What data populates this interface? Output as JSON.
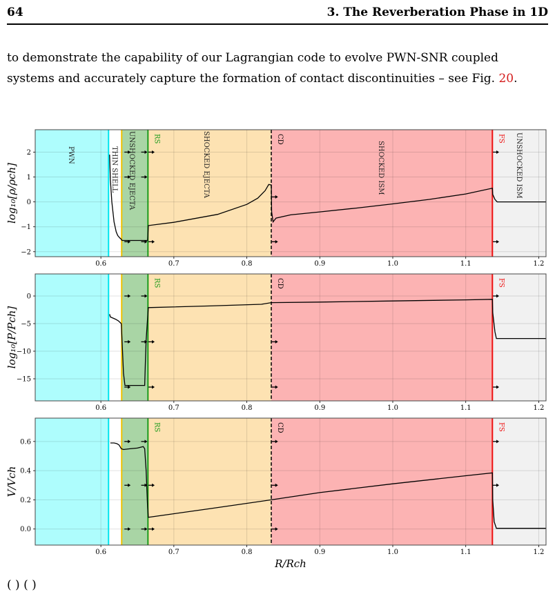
{
  "header": {
    "page_number": "64",
    "chapter_title": "3. The Reverberation Phase in 1D"
  },
  "paragraph": {
    "line1": "to demonstrate the capability of our Lagrangian code to evolve PWN-SNR coupled",
    "line2_prefix": "systems and accurately capture the formation of contact discontinuities – see Fig. ",
    "fig_ref": "20",
    "line2_suffix": "."
  },
  "trailing_text": "(                 )                 (                 )",
  "region_colors": {
    "pwn": "#aefdfd",
    "thin_shell": "#ffffff",
    "unshocked_ejecta": "#a9d5a5",
    "shocked_ejecta": "#fde2b2",
    "shocked_ism": "#fcb3b3",
    "unshocked_ism": "#f1f1f1"
  },
  "boundary_colors": {
    "pwn_edge": "#00e5ee",
    "shell_edge": "#f0c000",
    "rs": "#1b9a1b",
    "cd": "#000000",
    "fs": "#ee1111"
  },
  "chart_data": [
    {
      "type": "line",
      "ylabel": "log₁₀[ρ/ρch]",
      "xlim": [
        0.51,
        1.21
      ],
      "ylim": [
        -2.2,
        2.9
      ],
      "xticks": [
        0.6,
        0.7,
        0.8,
        0.9,
        1.0,
        1.1,
        1.2
      ],
      "xtick_labels": [
        "0.6",
        "0.7",
        "0.8",
        "0.9",
        "1.0",
        "1.1",
        "1.2"
      ],
      "yticks": [
        -2,
        -1,
        0,
        1,
        2
      ],
      "ytick_labels": [
        "−2",
        "−1",
        "0",
        "1",
        "2"
      ],
      "region_labels": [
        "PWN",
        "THIN SHELL",
        "UNSHOCKED EJECTA",
        "SHOCKED EJECTA",
        "SHOCKED ISM",
        "UNSHOCKED ISM"
      ],
      "boundary_labels": [
        "RS",
        "CD",
        "FS"
      ],
      "boundaries": {
        "pwn_edge": 0.6105,
        "shell_edge": 0.6285,
        "rs": 0.6645,
        "cd": 0.8335,
        "fs": 1.1365
      },
      "series": [
        {
          "x": [
            0.612,
            0.613,
            0.615,
            0.618,
            0.621,
            0.623,
            0.626,
            0.628,
            0.629,
            0.64,
            0.655,
            0.664,
            0.665,
            0.7,
            0.76,
            0.8,
            0.815,
            0.825,
            0.83,
            0.8335,
            0.834,
            0.836,
            0.84,
            0.86,
            0.9,
            0.95,
            1.0,
            1.05,
            1.1,
            1.1365,
            1.137,
            1.14,
            1.143,
            1.21
          ],
          "y": [
            1.9,
            0.9,
            0.0,
            -0.8,
            -1.2,
            -1.35,
            -1.45,
            -1.5,
            -1.55,
            -1.55,
            -1.55,
            -1.55,
            -0.95,
            -0.82,
            -0.5,
            -0.1,
            0.15,
            0.45,
            0.7,
            0.68,
            -0.4,
            -0.8,
            -0.65,
            -0.52,
            -0.4,
            -0.25,
            -0.08,
            0.1,
            0.32,
            0.55,
            0.3,
            0.1,
            0.0,
            0.0
          ]
        }
      ],
      "markers": [
        {
          "x": 0.636,
          "y": 2.0
        },
        {
          "x": 0.659,
          "y": 2.0
        },
        {
          "x": 0.636,
          "y": 1.0
        },
        {
          "x": 0.659,
          "y": 1.0
        },
        {
          "x": 0.636,
          "y": -1.6
        },
        {
          "x": 0.659,
          "y": -1.6
        },
        {
          "x": 0.669,
          "y": 2.0
        },
        {
          "x": 0.669,
          "y": -1.6
        },
        {
          "x": 0.838,
          "y": 0.2
        },
        {
          "x": 0.838,
          "y": -1.6
        },
        {
          "x": 1.141,
          "y": 2.0
        },
        {
          "x": 1.141,
          "y": -1.6
        }
      ]
    },
    {
      "type": "line",
      "ylabel": "log₁₀[P/Pch]",
      "xlim": [
        0.51,
        1.21
      ],
      "ylim": [
        -19,
        4
      ],
      "xticks": [
        0.6,
        0.7,
        0.8,
        0.9,
        1.0,
        1.1,
        1.2
      ],
      "xtick_labels": [
        "0.6",
        "0.7",
        "0.8",
        "0.9",
        "1.0",
        "1.1",
        "1.2"
      ],
      "yticks": [
        0,
        -5,
        -10,
        -15
      ],
      "ytick_labels": [
        "0",
        "−5",
        "−10",
        "−15"
      ],
      "boundary_labels": [
        "RS",
        "CD",
        "FS"
      ],
      "series": [
        {
          "x": [
            0.612,
            0.613,
            0.62,
            0.624,
            0.628,
            0.629,
            0.631,
            0.633,
            0.66,
            0.661,
            0.662,
            0.664,
            0.665,
            0.75,
            0.82,
            0.8335,
            0.9,
            1.0,
            1.1,
            1.1365,
            1.137,
            1.14,
            1.142,
            1.21
          ],
          "y": [
            -3.3,
            -3.8,
            -4.2,
            -4.5,
            -5.0,
            -8.0,
            -14.0,
            -16.2,
            -16.2,
            -12.0,
            -8.0,
            -4.0,
            -2.1,
            -1.8,
            -1.5,
            -1.2,
            -1.1,
            -0.9,
            -0.7,
            -0.6,
            -3.0,
            -6.5,
            -7.7,
            -7.7
          ]
        }
      ],
      "markers": [
        {
          "x": 0.636,
          "y": 0.0
        },
        {
          "x": 0.636,
          "y": -8.3
        },
        {
          "x": 0.659,
          "y": 0.0
        },
        {
          "x": 0.659,
          "y": -8.3
        },
        {
          "x": 0.636,
          "y": -16.5
        },
        {
          "x": 0.669,
          "y": -8.3
        },
        {
          "x": 0.669,
          "y": -16.5
        },
        {
          "x": 0.838,
          "y": -8.3
        },
        {
          "x": 0.838,
          "y": -16.5
        },
        {
          "x": 1.141,
          "y": 0.0
        },
        {
          "x": 1.141,
          "y": -16.5
        }
      ]
    },
    {
      "type": "line",
      "ylabel": "V/Vch",
      "xlabel": "R/Rch",
      "xlim": [
        0.51,
        1.21
      ],
      "ylim": [
        -0.11,
        0.76
      ],
      "xticks": [
        0.6,
        0.7,
        0.8,
        0.9,
        1.0,
        1.1,
        1.2
      ],
      "xtick_labels": [
        "0.6",
        "0.7",
        "0.8",
        "0.9",
        "1.0",
        "1.1",
        "1.2"
      ],
      "yticks": [
        0.0,
        0.2,
        0.4,
        0.6
      ],
      "ytick_labels": [
        "0.0",
        "0.2",
        "0.4",
        "0.6"
      ],
      "boundary_labels": [
        "RS",
        "CD",
        "FS"
      ],
      "series": [
        {
          "x": [
            0.613,
            0.618,
            0.622,
            0.625,
            0.628,
            0.631,
            0.64,
            0.65,
            0.658,
            0.66,
            0.662,
            0.664,
            0.665,
            0.75,
            0.8335,
            0.9,
            1.0,
            1.1,
            1.1365,
            1.137,
            1.139,
            1.142,
            1.21
          ],
          "y": [
            0.59,
            0.59,
            0.585,
            0.575,
            0.55,
            0.545,
            0.55,
            0.555,
            0.565,
            0.55,
            0.4,
            0.15,
            0.08,
            0.14,
            0.2,
            0.25,
            0.31,
            0.365,
            0.385,
            0.2,
            0.05,
            0.005,
            0.005
          ]
        }
      ],
      "markers": [
        {
          "x": 0.636,
          "y": 0.6
        },
        {
          "x": 0.659,
          "y": 0.6
        },
        {
          "x": 0.636,
          "y": 0.3
        },
        {
          "x": 0.659,
          "y": 0.3
        },
        {
          "x": 0.636,
          "y": 0.0
        },
        {
          "x": 0.659,
          "y": 0.0
        },
        {
          "x": 0.669,
          "y": 0.3
        },
        {
          "x": 0.669,
          "y": 0.0
        },
        {
          "x": 0.838,
          "y": 0.6
        },
        {
          "x": 0.838,
          "y": 0.3
        },
        {
          "x": 0.838,
          "y": 0.0
        },
        {
          "x": 1.141,
          "y": 0.6
        },
        {
          "x": 1.141,
          "y": 0.3
        }
      ]
    }
  ]
}
